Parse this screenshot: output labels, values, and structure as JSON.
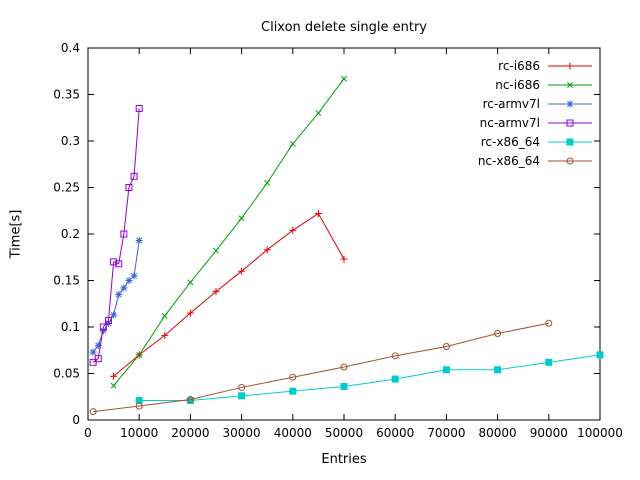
{
  "title": "Clixon delete single entry",
  "chart_data": {
    "type": "line",
    "title": "Clixon delete single entry",
    "xlabel": "Entries",
    "ylabel": "Time[s]",
    "xlim": [
      0,
      100000
    ],
    "ylim": [
      0,
      0.4
    ],
    "grid": false,
    "legend_position": "top-right",
    "xticks": [
      "0",
      "10000",
      "20000",
      "30000",
      "40000",
      "50000",
      "60000",
      "70000",
      "80000",
      "90000",
      "100000"
    ],
    "yticks": [
      "0",
      "0.05",
      "0.1",
      "0.15",
      "0.2",
      "0.25",
      "0.3",
      "0.35",
      "0.4"
    ],
    "series": [
      {
        "name": "rc-i686",
        "color": "#e00000",
        "marker": "plus",
        "x": [
          5000,
          10000,
          15000,
          20000,
          25000,
          30000,
          35000,
          40000,
          45000,
          50000
        ],
        "y": [
          0.047,
          0.07,
          0.091,
          0.115,
          0.138,
          0.16,
          0.183,
          0.204,
          0.222,
          0.173
        ]
      },
      {
        "name": "nc-i686",
        "color": "#00a000",
        "marker": "cross",
        "x": [
          5000,
          10000,
          15000,
          20000,
          25000,
          30000,
          35000,
          40000,
          45000,
          50000
        ],
        "y": [
          0.037,
          0.07,
          0.112,
          0.148,
          0.182,
          0.217,
          0.255,
          0.297,
          0.33,
          0.367
        ]
      },
      {
        "name": "rc-armv7l",
        "color": "#3465d4",
        "marker": "asterisk",
        "x": [
          1000,
          2000,
          3000,
          4000,
          5000,
          6000,
          7000,
          8000,
          9000,
          10000
        ],
        "y": [
          0.073,
          0.08,
          0.096,
          0.104,
          0.113,
          0.135,
          0.142,
          0.15,
          0.155,
          0.193
        ]
      },
      {
        "name": "nc-armv7l",
        "color": "#9400d3",
        "marker": "square-open",
        "x": [
          1000,
          2000,
          3000,
          4000,
          5000,
          6000,
          7000,
          8000,
          9000,
          10000
        ],
        "y": [
          0.062,
          0.066,
          0.1,
          0.107,
          0.17,
          0.168,
          0.2,
          0.25,
          0.262,
          0.335
        ]
      },
      {
        "name": "rc-x86_64",
        "color": "#00cccc",
        "marker": "square-filled",
        "x": [
          10000,
          20000,
          30000,
          40000,
          50000,
          60000,
          70000,
          80000,
          90000,
          100000
        ],
        "y": [
          0.021,
          0.021,
          0.026,
          0.031,
          0.036,
          0.044,
          0.054,
          0.054,
          0.062,
          0.07
        ]
      },
      {
        "name": "nc-x86_64",
        "color": "#a0522d",
        "marker": "circle-open",
        "x": [
          1000,
          10000,
          20000,
          30000,
          40000,
          50000,
          60000,
          70000,
          80000,
          90000
        ],
        "y": [
          0.009,
          0.015,
          0.022,
          0.035,
          0.046,
          0.057,
          0.069,
          0.079,
          0.093,
          0.104
        ]
      }
    ]
  }
}
